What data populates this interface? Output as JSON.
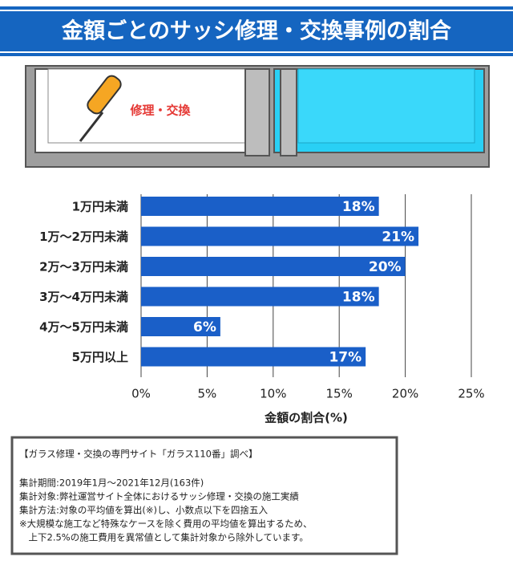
{
  "header": {
    "title": "金額ごとのサッシ修理・交換事例の割合"
  },
  "illustration": {
    "label": "修理・交換"
  },
  "chart_data": {
    "type": "hbar",
    "categories": [
      "1万円未満",
      "1万〜2万円未満",
      "2万〜3万円未満",
      "3万〜4万円未満",
      "4万〜5万円未満",
      "5万円以上"
    ],
    "values": [
      18,
      21,
      20,
      18,
      6,
      17
    ],
    "value_labels": [
      "18%",
      "21%",
      "20%",
      "18%",
      "6%",
      "17%"
    ],
    "color": "#1a5fc8",
    "xlim": [
      0,
      25
    ],
    "xticks": [
      {
        "value": 0,
        "label": "0%"
      },
      {
        "value": 5,
        "label": "5%"
      },
      {
        "value": 10,
        "label": "10%"
      },
      {
        "value": 15,
        "label": "15%"
      },
      {
        "value": 20,
        "label": "20%"
      },
      {
        "value": 25,
        "label": "25%"
      }
    ],
    "xlabel": "金額の割合(%)",
    "grid": true
  },
  "note": {
    "heading": "【ガラス修理・交換の専門サイト「ガラス110番」調べ】",
    "lines": [
      "集計期間:2019年1月〜2021年12月(163件)",
      "集計対象:弊社運営サイト全体におけるサッシ修理・交換の施工実績",
      "集計方法:対象の平均値を算出(※)し、小数点以下を四捨五入",
      "※大規模な施工など特殊なケースを除く費用の平均値を算出するため、",
      "　上下2.5%の施工費用を異常値として集計対象から除外しています。"
    ]
  }
}
